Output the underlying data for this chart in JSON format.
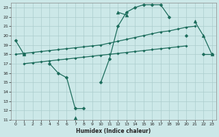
{
  "xlabel": "Humidex (Indice chaleur)",
  "bg_color": "#cce8e8",
  "grid_color": "#aacccc",
  "line_color": "#1a6b5a",
  "xlim": [
    -0.5,
    23.5
  ],
  "ylim": [
    11,
    23.5
  ],
  "xticks": [
    0,
    1,
    2,
    3,
    4,
    5,
    6,
    7,
    8,
    9,
    10,
    11,
    12,
    13,
    14,
    15,
    16,
    17,
    18,
    19,
    20,
    21,
    22,
    23
  ],
  "yticks": [
    11,
    12,
    13,
    14,
    15,
    16,
    17,
    18,
    19,
    20,
    21,
    22,
    23
  ],
  "lines": [
    {
      "x": [
        0,
        1,
        2,
        3,
        4,
        5,
        6,
        7,
        8,
        9,
        10,
        11,
        12,
        13,
        14,
        15,
        16,
        17,
        18,
        19,
        20,
        21,
        22,
        23
      ],
      "y": [
        19.5,
        18.0,
        null,
        null,
        17.0,
        16.0,
        15.5,
        12.2,
        12.2,
        null,
        15.0,
        17.5,
        21.0,
        22.5,
        23.0,
        23.3,
        23.3,
        23.3,
        22.0,
        null,
        20.0,
        null,
        18.0,
        18.0
      ]
    },
    {
      "x": [
        0,
        1,
        2,
        3,
        4,
        5,
        6,
        7,
        8,
        9,
        10,
        11,
        12,
        13,
        14,
        15,
        16,
        17,
        18,
        19,
        20,
        21,
        22,
        23
      ],
      "y": [
        null,
        18.0,
        null,
        null,
        null,
        null,
        null,
        11.2,
        null,
        null,
        null,
        null,
        22.5,
        22.2,
        null,
        null,
        null,
        null,
        null,
        null,
        null,
        21.5,
        20.0,
        18.0
      ]
    },
    {
      "x": [
        0,
        1,
        2,
        3,
        4,
        5,
        6,
        7,
        8,
        9,
        10,
        11,
        12,
        13,
        14,
        15,
        16,
        17,
        18,
        19,
        20,
        21,
        22,
        23
      ],
      "y": [
        18.0,
        18.1,
        18.2,
        18.3,
        18.4,
        18.5,
        18.6,
        18.7,
        18.8,
        18.9,
        19.0,
        19.2,
        19.4,
        19.6,
        19.8,
        20.0,
        20.2,
        20.4,
        20.5,
        20.7,
        20.9,
        21.0,
        null,
        18.0
      ]
    },
    {
      "x": [
        0,
        1,
        2,
        3,
        4,
        5,
        6,
        7,
        8,
        9,
        10,
        11,
        12,
        13,
        14,
        15,
        16,
        17,
        18,
        19,
        20,
        21,
        22,
        23
      ],
      "y": [
        null,
        17.0,
        17.1,
        17.2,
        17.3,
        17.4,
        17.5,
        17.6,
        17.7,
        17.8,
        17.9,
        18.0,
        18.1,
        18.2,
        18.3,
        18.4,
        18.5,
        18.6,
        18.7,
        18.8,
        18.9,
        null,
        null,
        18.0
      ]
    }
  ]
}
